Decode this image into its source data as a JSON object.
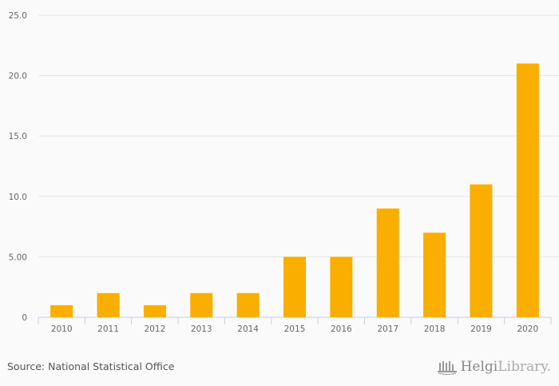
{
  "chart_data": {
    "type": "bar",
    "title": "",
    "xlabel": "",
    "ylabel": "",
    "categories": [
      "2010",
      "2011",
      "2012",
      "2013",
      "2014",
      "2015",
      "2016",
      "2017",
      "2018",
      "2019",
      "2020"
    ],
    "values": [
      1,
      2,
      1,
      2,
      2,
      5,
      5,
      9,
      7,
      11,
      21
    ],
    "ylim": [
      0,
      25
    ],
    "yticks": [
      0,
      5,
      10,
      15,
      20,
      25
    ],
    "ytick_labels": [
      "0",
      "5.00",
      "10.0",
      "15.0",
      "20.0",
      "25.0"
    ],
    "grid": true,
    "legend": "none",
    "colors": {
      "bar": "#f9ae00",
      "grid": "#e6e6e6",
      "axis": "#c5d0e6"
    }
  },
  "footer": {
    "source": "Source: National Statistical Office",
    "logo_bold": "Helgi",
    "logo_thin": "Library."
  }
}
